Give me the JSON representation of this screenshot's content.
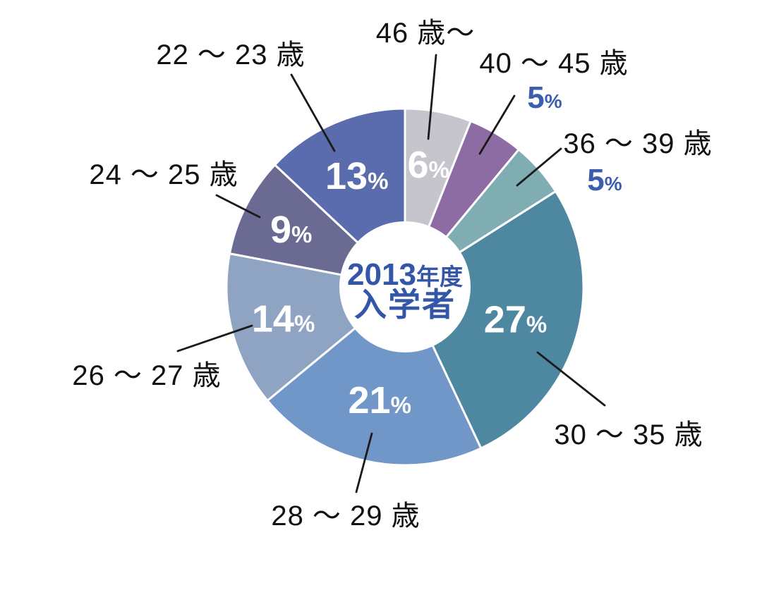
{
  "page": {
    "background": "#ffffff"
  },
  "chart_data": {
    "type": "pie",
    "subtype": "donut",
    "unit": "%",
    "total": 100,
    "start_angle_deg": 0,
    "direction": "clockwise",
    "center_text": {
      "year": "2013",
      "year_suffix": "年度",
      "line2": "入学者"
    },
    "center_text_color": "#3356a8",
    "leader_line_color": "#1a1a1a",
    "label_text_color": "#111111",
    "outside_percent_color": "#3c5eae",
    "inside_percent_color": "#ffffff",
    "percent_sign": "%",
    "segments": [
      {
        "label": "46 歳〜",
        "value": 6,
        "color": "#c6c4cc",
        "percent_label_placement": "inside"
      },
      {
        "label": "40 〜 45 歳",
        "value": 5,
        "color": "#8d6ba3",
        "percent_label_placement": "outside"
      },
      {
        "label": "36 〜 39 歳",
        "value": 5,
        "color": "#7fadb2",
        "percent_label_placement": "outside"
      },
      {
        "label": "30 〜 35 歳",
        "value": 27,
        "color": "#4d87a0",
        "percent_label_placement": "inside"
      },
      {
        "label": "28 〜 29 歳",
        "value": 21,
        "color": "#7197c9",
        "percent_label_placement": "inside"
      },
      {
        "label": "26 〜 27 歳",
        "value": 14,
        "color": "#8fa3c2",
        "percent_label_placement": "inside"
      },
      {
        "label": "24 〜 25 歳",
        "value": 9,
        "color": "#6b6a93",
        "percent_label_placement": "inside"
      },
      {
        "label": "22 〜 23 歳",
        "value": 13,
        "color": "#5a6cae",
        "percent_label_placement": "inside"
      }
    ]
  }
}
